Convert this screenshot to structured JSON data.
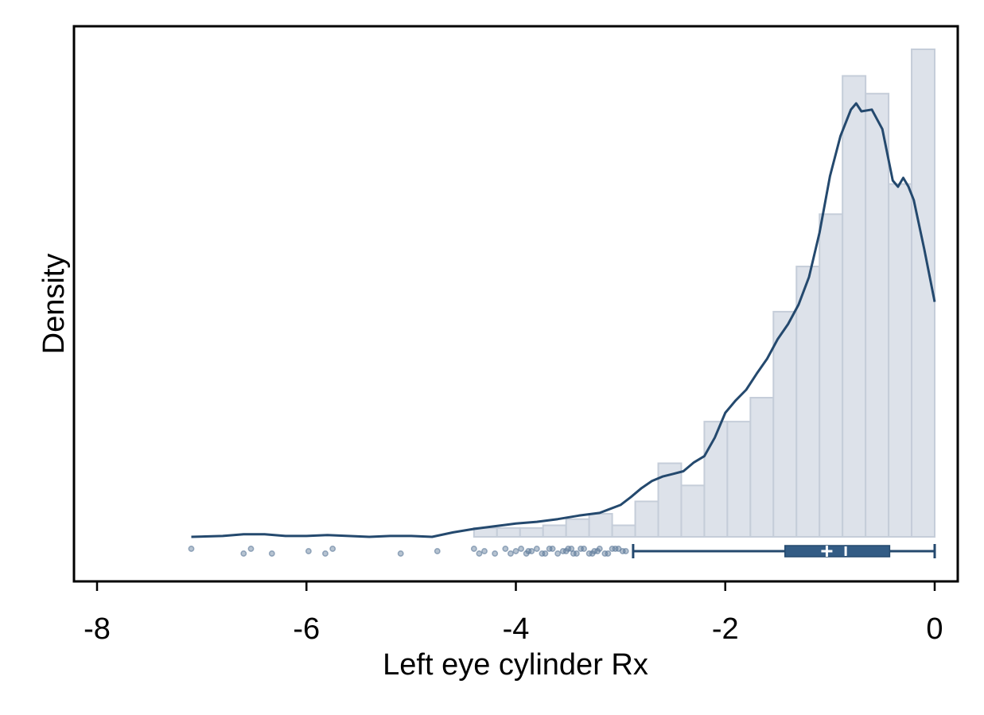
{
  "chart_data": {
    "type": "histogram",
    "title": "",
    "xlabel": "Left eye cylinder Rx",
    "ylabel": "Density",
    "xlim": [
      -8.25,
      0.25
    ],
    "ylim": [
      -0.04,
      0.55
    ],
    "x_ticks": [
      -8,
      -6,
      -4,
      -2,
      0
    ],
    "x_tick_labels": [
      "-8",
      "-6",
      "-4",
      "-2",
      "0"
    ],
    "y_ticks_shown": false,
    "grid": false,
    "legend": "none",
    "colors": {
      "bar_fill": "#dde2ea",
      "bar_edge": "#c5cdd9",
      "line": "#24496e",
      "box": "#335c85",
      "outlier": "#5d7a9a"
    },
    "histogram": {
      "bin_width": 0.22,
      "bins": [
        {
          "x0": -4.4,
          "x1": -4.18,
          "density": 0.01
        },
        {
          "x0": -4.18,
          "x1": -3.96,
          "density": 0.01
        },
        {
          "x0": -3.96,
          "x1": -3.74,
          "density": 0.01
        },
        {
          "x0": -3.74,
          "x1": -3.52,
          "density": 0.013
        },
        {
          "x0": -3.52,
          "x1": -3.3,
          "density": 0.02
        },
        {
          "x0": -3.3,
          "x1": -3.08,
          "density": 0.026
        },
        {
          "x0": -3.08,
          "x1": -2.86,
          "density": 0.013
        },
        {
          "x0": -2.86,
          "x1": -2.64,
          "density": 0.04
        },
        {
          "x0": -2.64,
          "x1": -2.42,
          "density": 0.083
        },
        {
          "x0": -2.42,
          "x1": -2.2,
          "density": 0.058
        },
        {
          "x0": -2.2,
          "x1": -1.98,
          "density": 0.13
        },
        {
          "x0": -1.98,
          "x1": -1.76,
          "density": 0.13
        },
        {
          "x0": -1.76,
          "x1": -1.54,
          "density": 0.157
        },
        {
          "x0": -1.54,
          "x1": -1.32,
          "density": 0.254
        },
        {
          "x0": -1.32,
          "x1": -1.1,
          "density": 0.305
        },
        {
          "x0": -1.1,
          "x1": -0.88,
          "density": 0.364
        },
        {
          "x0": -0.88,
          "x1": -0.66,
          "density": 0.52
        },
        {
          "x0": -0.66,
          "x1": -0.44,
          "density": 0.5
        },
        {
          "x0": -0.44,
          "x1": -0.22,
          "density": 0.398
        },
        {
          "x0": -0.22,
          "x1": 0.0,
          "density": 0.55
        }
      ]
    },
    "kde": {
      "x": [
        -7.1,
        -6.8,
        -6.6,
        -6.4,
        -6.2,
        -6.0,
        -5.8,
        -5.6,
        -5.4,
        -5.2,
        -5.0,
        -4.8,
        -4.6,
        -4.4,
        -4.2,
        -4.0,
        -3.8,
        -3.6,
        -3.4,
        -3.2,
        -3.0,
        -2.9,
        -2.8,
        -2.7,
        -2.6,
        -2.5,
        -2.4,
        -2.3,
        -2.2,
        -2.1,
        -2.0,
        -1.9,
        -1.8,
        -1.7,
        -1.6,
        -1.5,
        -1.4,
        -1.3,
        -1.2,
        -1.1,
        -1.0,
        -0.9,
        -0.8,
        -0.75,
        -0.7,
        -0.6,
        -0.5,
        -0.4,
        -0.35,
        -0.3,
        -0.25,
        -0.2,
        -0.1,
        0.0
      ],
      "y": [
        0.0,
        0.001,
        0.003,
        0.003,
        0.001,
        0.001,
        0.002,
        0.001,
        0.0,
        0.001,
        0.001,
        0.0,
        0.005,
        0.009,
        0.012,
        0.015,
        0.017,
        0.02,
        0.024,
        0.027,
        0.036,
        0.045,
        0.055,
        0.063,
        0.068,
        0.071,
        0.074,
        0.084,
        0.091,
        0.112,
        0.14,
        0.154,
        0.166,
        0.184,
        0.201,
        0.223,
        0.24,
        0.262,
        0.293,
        0.343,
        0.407,
        0.452,
        0.482,
        0.489,
        0.48,
        0.482,
        0.46,
        0.402,
        0.395,
        0.405,
        0.395,
        0.38,
        0.325,
        0.265
      ]
    },
    "boxplot": {
      "whisker_low": -2.88,
      "q1": -1.43,
      "median": -0.85,
      "mean": -1.03,
      "q3": -0.43,
      "whisker_high": 0.0,
      "outliers": [
        -7.1,
        -6.6,
        -6.53,
        -6.33,
        -5.98,
        -5.82,
        -5.75,
        -5.1,
        -4.75,
        -4.4,
        -4.35,
        -4.3,
        -4.2,
        -4.1,
        -4.05,
        -4.0,
        -3.95,
        -3.9,
        -3.88,
        -3.85,
        -3.8,
        -3.75,
        -3.72,
        -3.68,
        -3.65,
        -3.6,
        -3.55,
        -3.52,
        -3.5,
        -3.47,
        -3.45,
        -3.42,
        -3.38,
        -3.35,
        -3.3,
        -3.27,
        -3.25,
        -3.22,
        -3.2,
        -3.15,
        -3.12,
        -3.08,
        -3.05,
        -3.02,
        -2.98,
        -2.95
      ]
    }
  }
}
